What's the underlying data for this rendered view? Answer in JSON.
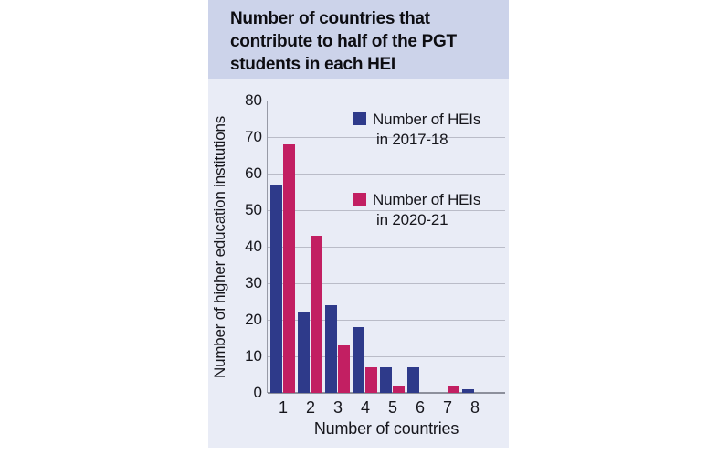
{
  "title": {
    "lines": [
      "Number of countries that",
      "contribute to half of the PGT",
      "students in each HEI"
    ],
    "full": "Number of countries that contribute to half of the PGT students in each HEI"
  },
  "legend": {
    "items": [
      {
        "line1": "Number of HEIs",
        "line2": "in 2017-18",
        "color": "#2e3a8a"
      },
      {
        "line1": "Number of HEIs",
        "line2": "in 2020-21",
        "color": "#c21f62"
      }
    ]
  },
  "axes": {
    "x_label": "Number of countries",
    "y_label": "Number of higher education institutions",
    "y_ticks": [
      "0",
      "10",
      "20",
      "30",
      "40",
      "50",
      "60",
      "70",
      "80"
    ],
    "x_ticks": [
      "1",
      "2",
      "3",
      "4",
      "5",
      "6",
      "7",
      "8"
    ]
  },
  "chart_data": {
    "type": "bar",
    "title": "Number of countries that contribute to half of the PGT students in each HEI",
    "categories": [
      "1",
      "2",
      "3",
      "4",
      "5",
      "6",
      "7",
      "8"
    ],
    "series": [
      {
        "name": "Number of HEIs in 2017-18",
        "color": "#2e3a8a",
        "values": [
          57,
          22,
          24,
          18,
          7,
          7,
          0,
          1
        ]
      },
      {
        "name": "Number of HEIs in 2020-21",
        "color": "#c21f62",
        "values": [
          68,
          43,
          13,
          7,
          2,
          0,
          2,
          0
        ]
      }
    ],
    "xlabel": "Number of countries",
    "ylabel": "Number of higher education institutions",
    "ylim": [
      0,
      80
    ],
    "ytick_step": 10,
    "grid": true,
    "legend_position": "inside-top-right"
  },
  "colors": {
    "page_bg": "#ffffff",
    "title_bg": "#ccd3ea",
    "chart_bg": "#e9ecf6",
    "grid": "#babcc8",
    "axis": "#8d909c",
    "text": "#16161c"
  }
}
